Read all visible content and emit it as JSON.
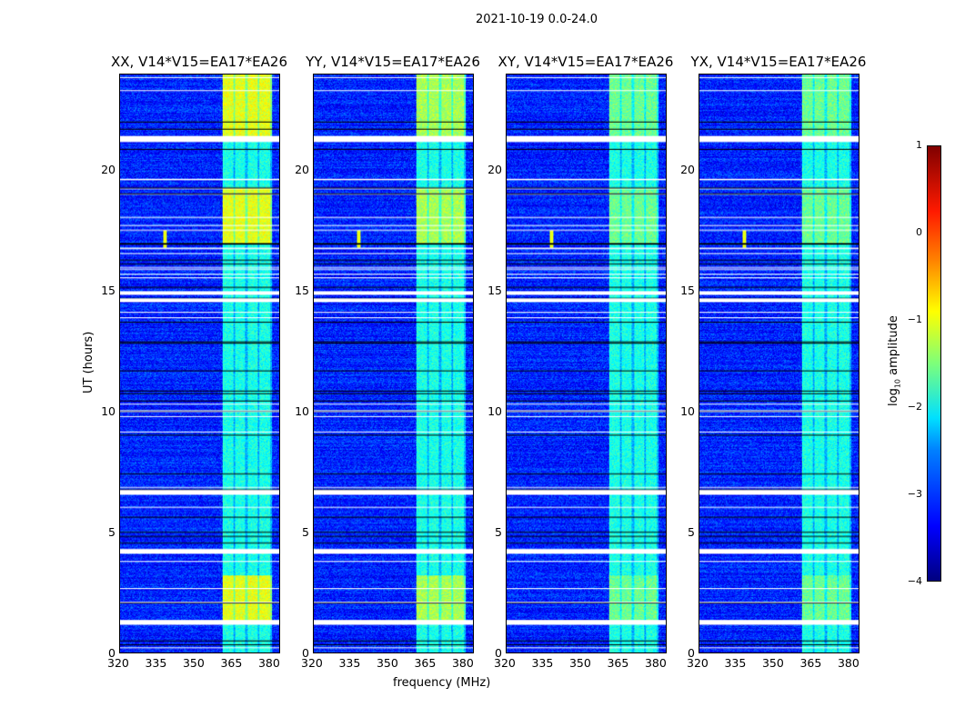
{
  "chart_data": {
    "type": "heatmap",
    "title": "2021-10-19 0.0-24.0",
    "xlabel": "frequency (MHz)",
    "ylabel": "UT (hours)",
    "xlim": [
      320,
      384
    ],
    "ylim": [
      0,
      24
    ],
    "xticks": [
      320,
      335,
      350,
      365,
      380
    ],
    "yticks": [
      0,
      5,
      10,
      15,
      20
    ],
    "panels": [
      {
        "title": "XX, V14*V15=EA17*EA26",
        "band_level": -1.0
      },
      {
        "title": "YY, V14*V15=EA17*EA26",
        "band_level": -1.3
      },
      {
        "title": "XY, V14*V15=EA17*EA26",
        "band_level": -1.6
      },
      {
        "title": "YX, V14*V15=EA17*EA26",
        "band_level": -1.6
      }
    ],
    "background_level": -3.2,
    "signal_band_mhz": [
      361,
      381
    ],
    "strong_periods_hours": [
      [
        1.3,
        3.2
      ],
      [
        17.0,
        19.3
      ],
      [
        21.4,
        24.0
      ]
    ],
    "rfi_spike": {
      "freq_mhz": 338,
      "time_hours": 17.2
    },
    "flagged_rows_hours": [
      [
        21.2,
        21.45
      ],
      [
        1.15,
        1.35
      ],
      [
        4.1,
        4.3
      ],
      [
        6.55,
        6.75
      ],
      [
        14.55,
        14.7
      ],
      [
        14.85,
        15.0
      ]
    ],
    "colorbar": {
      "label": "log10 amplitude",
      "label_main": "log",
      "label_sub": "10",
      "label_rest": " amplitude",
      "range": [
        -4,
        1
      ],
      "ticks": [
        "1",
        "0",
        "−1",
        "−2",
        "−3",
        "−4"
      ],
      "tick_values": [
        1,
        0,
        -1,
        -2,
        -3,
        -4
      ],
      "colormap": "jet"
    }
  }
}
